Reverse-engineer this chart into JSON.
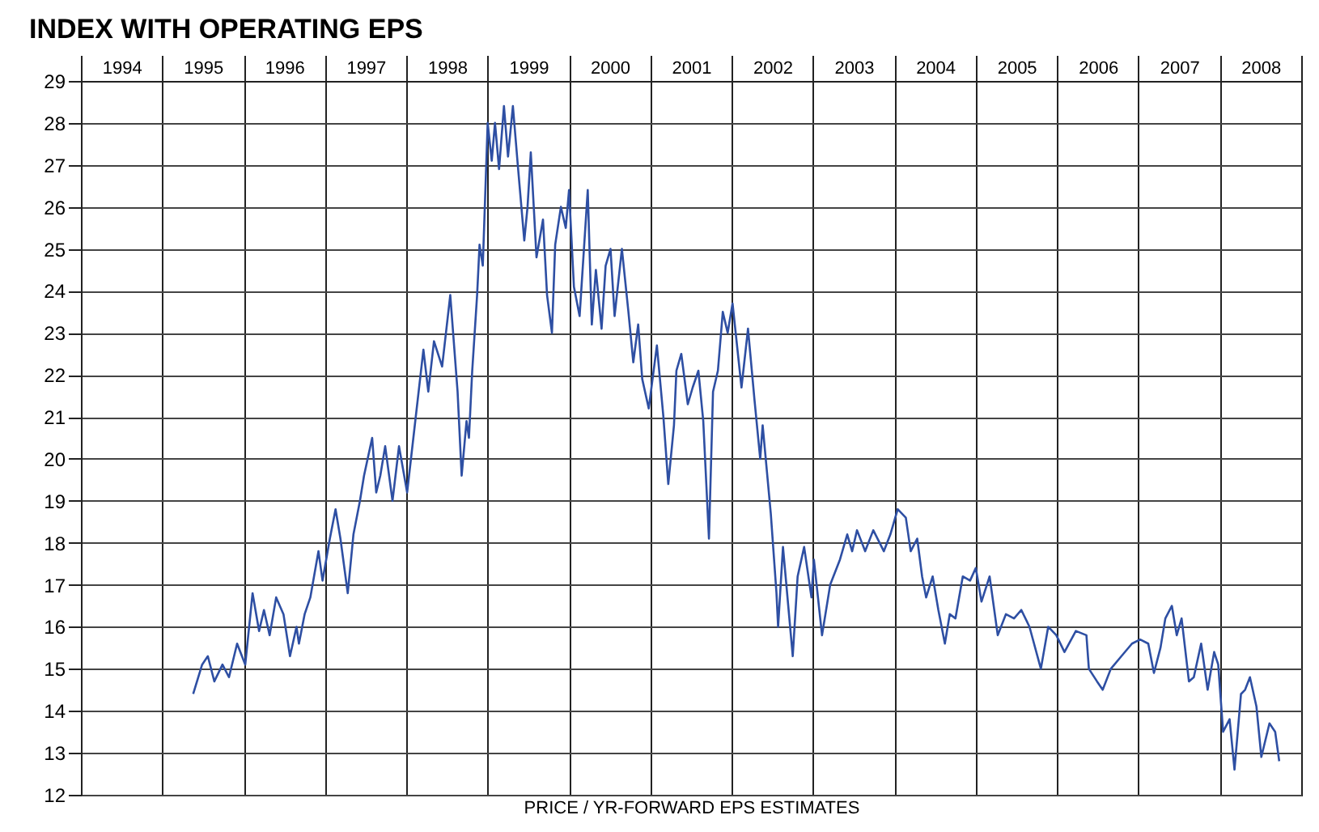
{
  "chart_data": {
    "type": "line",
    "title": "INDEX WITH OPERATING EPS",
    "xlabel": "PRICE / YR-FORWARD EPS ESTIMATES",
    "xlim": [
      1994,
      2009
    ],
    "ylim": [
      12,
      29
    ],
    "xticks": [
      {
        "value": 1994,
        "label": null
      },
      {
        "value": 1994.5,
        "label": "1994"
      },
      {
        "value": 1995,
        "label": null
      },
      {
        "value": 1995.5,
        "label": "1995"
      },
      {
        "value": 1996,
        "label": null
      },
      {
        "value": 1996.5,
        "label": "1996"
      },
      {
        "value": 1997,
        "label": null
      },
      {
        "value": 1997.5,
        "label": "1997"
      },
      {
        "value": 1998,
        "label": null
      },
      {
        "value": 1998.5,
        "label": "1998"
      },
      {
        "value": 1999,
        "label": null
      },
      {
        "value": 1999.5,
        "label": "1999"
      },
      {
        "value": 2000,
        "label": null
      },
      {
        "value": 2000.5,
        "label": "2000"
      },
      {
        "value": 2001,
        "label": null
      },
      {
        "value": 2001.5,
        "label": "2001"
      },
      {
        "value": 2002,
        "label": null
      },
      {
        "value": 2002.5,
        "label": "2002"
      },
      {
        "value": 2003,
        "label": null
      },
      {
        "value": 2003.5,
        "label": "2003"
      },
      {
        "value": 2004,
        "label": null
      },
      {
        "value": 2004.5,
        "label": "2004"
      },
      {
        "value": 2005,
        "label": null
      },
      {
        "value": 2005.5,
        "label": "2005"
      },
      {
        "value": 2006,
        "label": null
      },
      {
        "value": 2006.5,
        "label": "2006"
      },
      {
        "value": 2007,
        "label": null
      },
      {
        "value": 2007.5,
        "label": "2007"
      },
      {
        "value": 2008,
        "label": null
      },
      {
        "value": 2008.5,
        "label": "2008"
      },
      {
        "value": 2009,
        "label": null
      }
    ],
    "yticks": [
      12,
      13,
      14,
      15,
      16,
      17,
      18,
      19,
      20,
      21,
      22,
      23,
      24,
      25,
      26,
      27,
      28,
      29
    ],
    "grid": true,
    "line_style": "solid",
    "series": [
      {
        "color": "#2e4fa3",
        "x": [
          1995.38,
          1995.49,
          1995.56,
          1995.64,
          1995.74,
          1995.82,
          1995.92,
          1996.02,
          1996.11,
          1996.19,
          1996.25,
          1996.32,
          1996.4,
          1996.49,
          1996.57,
          1996.65,
          1996.68,
          1996.75,
          1996.82,
          1996.92,
          1996.97,
          1997.06,
          1997.13,
          1997.19,
          1997.28,
          1997.35,
          1997.43,
          1997.48,
          1997.58,
          1997.63,
          1997.68,
          1997.74,
          1997.83,
          1997.91,
          1998.01,
          1998.11,
          1998.21,
          1998.27,
          1998.34,
          1998.44,
          1998.54,
          1998.63,
          1998.68,
          1998.74,
          1998.77,
          1998.81,
          1998.87,
          1998.9,
          1998.94,
          1999.0,
          1999.05,
          1999.09,
          1999.14,
          1999.2,
          1999.25,
          1999.31,
          1999.37,
          1999.45,
          1999.49,
          1999.53,
          1999.6,
          1999.68,
          1999.73,
          1999.79,
          1999.83,
          1999.9,
          1999.96,
          2000.0,
          2000.06,
          2000.13,
          2000.23,
          2000.28,
          2000.33,
          2000.4,
          2000.45,
          2000.51,
          2000.56,
          2000.65,
          2000.73,
          2000.79,
          2000.85,
          2000.9,
          2000.98,
          2001.08,
          2001.16,
          2001.22,
          2001.29,
          2001.32,
          2001.38,
          2001.46,
          2001.52,
          2001.59,
          2001.65,
          2001.72,
          2001.77,
          2001.83,
          2001.89,
          2001.95,
          2002.01,
          2002.12,
          2002.2,
          2002.28,
          2002.35,
          2002.38,
          2002.48,
          2002.55,
          2002.57,
          2002.63,
          2002.75,
          2002.81,
          2002.89,
          2002.98,
          2003.01,
          2003.11,
          2003.21,
          2003.33,
          2003.42,
          2003.48,
          2003.54,
          2003.64,
          2003.74,
          2003.87,
          2003.95,
          2004.04,
          2004.14,
          2004.2,
          2004.28,
          2004.34,
          2004.39,
          2004.47,
          2004.54,
          2004.62,
          2004.68,
          2004.75,
          2004.84,
          2004.93,
          2005.0,
          2005.07,
          2005.17,
          2005.27,
          2005.37,
          2005.47,
          2005.56,
          2005.66,
          2005.8,
          2005.89,
          2005.99,
          2006.09,
          2006.23,
          2006.36,
          2006.39,
          2006.49,
          2006.56,
          2006.66,
          2006.79,
          2006.92,
          2007.02,
          2007.12,
          2007.19,
          2007.27,
          2007.33,
          2007.41,
          2007.47,
          2007.53,
          2007.62,
          2007.68,
          2007.77,
          2007.85,
          2007.93,
          2007.98,
          2008.04,
          2008.12,
          2008.18,
          2008.26,
          2008.31,
          2008.37,
          2008.45,
          2008.51,
          2008.61,
          2008.68,
          2008.73
        ],
        "values": [
          14.4,
          15.1,
          15.3,
          14.7,
          15.1,
          14.8,
          15.6,
          15.1,
          16.8,
          15.9,
          16.4,
          15.8,
          16.7,
          16.3,
          15.3,
          16.0,
          15.6,
          16.3,
          16.7,
          17.8,
          17.1,
          18.1,
          18.8,
          18.1,
          16.8,
          18.2,
          19.0,
          19.6,
          20.5,
          19.2,
          19.6,
          20.3,
          19.0,
          20.3,
          19.2,
          20.9,
          22.6,
          21.6,
          22.8,
          22.2,
          23.9,
          21.6,
          19.6,
          20.9,
          20.5,
          22.1,
          23.9,
          25.1,
          24.6,
          28.0,
          27.1,
          28.0,
          26.9,
          28.4,
          27.2,
          28.4,
          27.0,
          25.2,
          26.0,
          27.3,
          24.8,
          25.7,
          23.9,
          23.0,
          25.1,
          26.0,
          25.5,
          26.4,
          24.1,
          23.4,
          26.4,
          23.2,
          24.5,
          23.1,
          24.6,
          25.0,
          23.4,
          25.0,
          23.5,
          22.3,
          23.2,
          21.9,
          21.2,
          22.7,
          21.0,
          19.4,
          20.8,
          22.1,
          22.5,
          21.3,
          21.7,
          22.1,
          20.9,
          18.1,
          21.6,
          22.1,
          23.5,
          23.0,
          23.7,
          21.7,
          23.1,
          21.4,
          20.0,
          20.8,
          18.7,
          16.8,
          16.0,
          17.9,
          15.3,
          17.2,
          17.9,
          16.7,
          17.6,
          15.8,
          17.0,
          17.6,
          18.2,
          17.8,
          18.3,
          17.8,
          18.3,
          17.8,
          18.2,
          18.8,
          18.6,
          17.8,
          18.1,
          17.2,
          16.7,
          17.2,
          16.4,
          15.6,
          16.3,
          16.2,
          17.2,
          17.1,
          17.4,
          16.6,
          17.2,
          15.8,
          16.3,
          16.2,
          16.4,
          16.0,
          15.0,
          16.0,
          15.8,
          15.4,
          15.9,
          15.8,
          15.0,
          14.7,
          14.5,
          15.0,
          15.3,
          15.6,
          15.7,
          15.6,
          14.9,
          15.5,
          16.2,
          16.5,
          15.8,
          16.2,
          14.7,
          14.8,
          15.6,
          14.5,
          15.4,
          15.1,
          13.5,
          13.8,
          12.6,
          14.4,
          14.5,
          14.8,
          14.1,
          12.9,
          13.7,
          13.5,
          12.8
        ]
      }
    ]
  }
}
